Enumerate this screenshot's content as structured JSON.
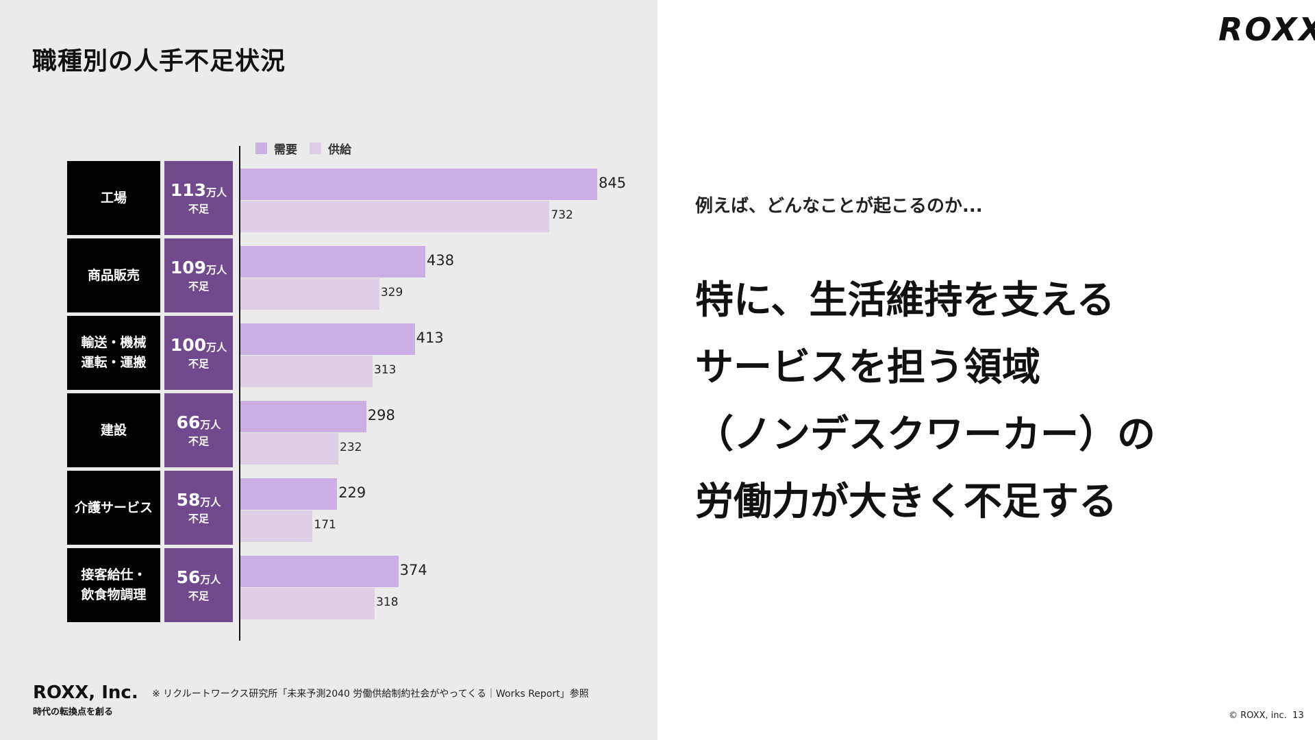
{
  "left": {
    "title": "職種別の人手不足状況",
    "legend": [
      {
        "label": "需要",
        "color": "#cbaee3"
      },
      {
        "label": "供給",
        "color": "#dfcfe6"
      }
    ]
  },
  "chart_data": {
    "type": "bar",
    "orientation": "horizontal",
    "categories": [
      "工場",
      "商品販売",
      "輸送・機械\n運転・運搬",
      "建設",
      "介護サービス",
      "接客給仕・\n飲食物調理"
    ],
    "series": [
      {
        "name": "需要",
        "values": [
          845,
          438,
          413,
          298,
          229,
          374
        ]
      },
      {
        "name": "供給",
        "values": [
          732,
          329,
          313,
          232,
          171,
          318
        ]
      }
    ],
    "shortage": [
      "113",
      "109",
      "100",
      "66",
      "58",
      "56"
    ],
    "shortage_unit": "万人",
    "shortage_label": "不足",
    "colors": {
      "demand": "#cbaee3",
      "supply": "#dfcfe6",
      "shortage_box": "#714a8e",
      "category_box": "#000000"
    }
  },
  "footer": {
    "company": "ROXX, Inc.",
    "tagline": "時代の転換点を創る",
    "note": "※ リクルートワークス研究所「未来予測2040 労働供給制約社会がやってくる｜Works Report」参照"
  },
  "right": {
    "logo": "ROXX",
    "lead": "例えば、どんなことが起こるのか...",
    "headline": [
      "特に、生活維持を支える",
      "サービスを担う領域",
      "（ノンデスクワーカー）の",
      "労働力が大きく不足する"
    ],
    "copyright": "© ROXX, inc.",
    "page": "13"
  }
}
